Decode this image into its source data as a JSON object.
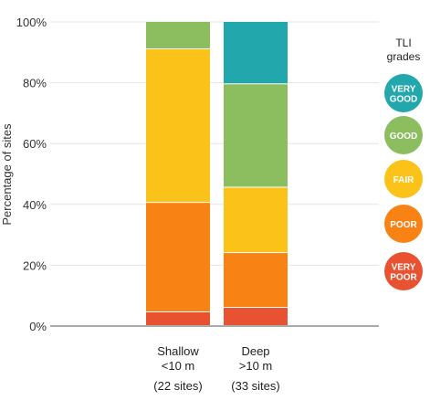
{
  "chart_data": {
    "type": "bar",
    "stacked": true,
    "categories": [
      {
        "lines": [
          "Shallow",
          "<10 m"
        ],
        "sites": "(22 sites)"
      },
      {
        "lines": [
          "Deep",
          ">10 m"
        ],
        "sites": "(33 sites)"
      }
    ],
    "series": [
      {
        "name": "VERY POOR",
        "label_lines": [
          "VERY",
          "POOR"
        ],
        "color": "#e85230",
        "values": [
          4.5,
          6
        ]
      },
      {
        "name": "POOR",
        "label_lines": [
          "POOR"
        ],
        "color": "#f98215",
        "values": [
          36,
          18
        ]
      },
      {
        "name": "FAIR",
        "label_lines": [
          "FAIR"
        ],
        "color": "#fbc319",
        "values": [
          50.5,
          21.5
        ]
      },
      {
        "name": "GOOD",
        "label_lines": [
          "GOOD"
        ],
        "color": "#8cbd5e",
        "values": [
          9,
          34
        ]
      },
      {
        "name": "VERY GOOD",
        "label_lines": [
          "VERY",
          "GOOD"
        ],
        "color": "#22a7ad",
        "values": [
          0,
          20.5
        ]
      }
    ],
    "ylabel": "Percentage of sites",
    "ylim": [
      0,
      100
    ],
    "yticks": [
      0,
      20,
      40,
      60,
      80,
      100
    ],
    "ytick_labels": [
      "0%",
      "20%",
      "40%",
      "60%",
      "80%",
      "100%"
    ],
    "grid": true,
    "legend": {
      "title_lines": [
        "TLI",
        "grades"
      ],
      "placement": "right",
      "order": [
        "VERY GOOD",
        "GOOD",
        "FAIR",
        "POOR",
        "VERY POOR"
      ]
    }
  }
}
